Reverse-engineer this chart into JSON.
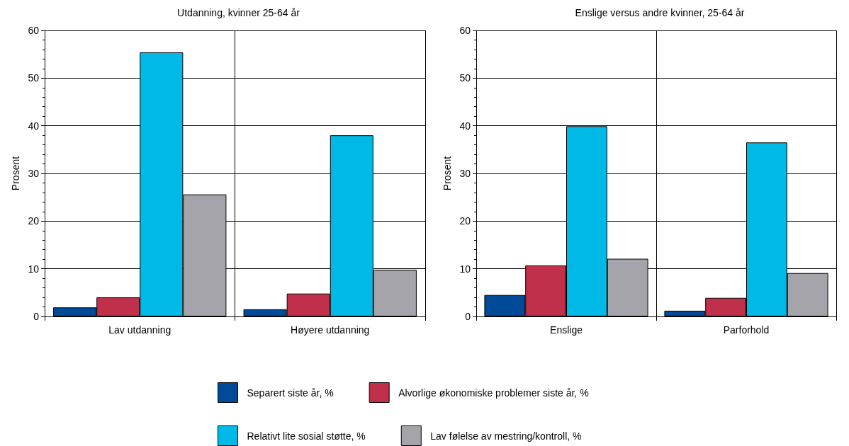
{
  "chart_data": [
    {
      "type": "bar",
      "title": "Utdanning, kvinner 25-64 år",
      "ylabel": "Prosent",
      "categories": [
        "Lav utdanning",
        "Høyere utdanning"
      ],
      "ylim": [
        0,
        60
      ],
      "yticks": [
        0,
        10,
        20,
        30,
        40,
        50,
        60
      ],
      "grid": true,
      "legend": "bottom",
      "series": [
        {
          "name": "Separert siste år, %",
          "color": "#004a98",
          "values": [
            1.9,
            1.5
          ]
        },
        {
          "name": "Alvorlige økonomiske problemer siste år, %",
          "color": "#c0304a",
          "values": [
            4.0,
            4.8
          ]
        },
        {
          "name": "Relativt lite sosial støtte, %",
          "color": "#00b9e6",
          "values": [
            55.4,
            38.0
          ]
        },
        {
          "name": "Lav følelse av mestring/kontroll, %",
          "color": "#a5a4aa",
          "values": [
            25.6,
            9.8
          ]
        }
      ]
    },
    {
      "type": "bar",
      "title": "Enslige versus andre kvinner, 25-64 år",
      "ylabel": "Prosent",
      "categories": [
        "Enslige",
        "Parforhold"
      ],
      "ylim": [
        0,
        60
      ],
      "yticks": [
        0,
        10,
        20,
        30,
        40,
        50,
        60
      ],
      "grid": true,
      "series": [
        {
          "color": "#004a98",
          "values": [
            4.5,
            1.2
          ]
        },
        {
          "color": "#c0304a",
          "values": [
            10.7,
            3.9
          ]
        },
        {
          "color": "#00b9e6",
          "values": [
            39.9,
            36.5
          ]
        },
        {
          "color": "#a5a4aa",
          "values": [
            12.1,
            9.1
          ]
        }
      ]
    }
  ]
}
